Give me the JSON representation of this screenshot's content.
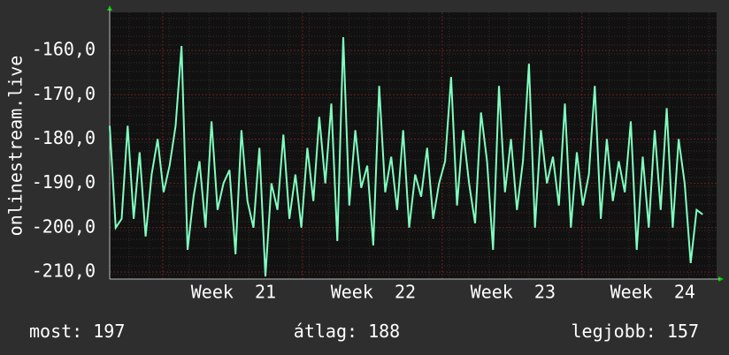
{
  "chart_data": {
    "type": "line",
    "y_label": "onlinestream.live",
    "x": [
      0,
      0.3,
      0.6,
      0.9,
      1.2,
      1.5,
      1.8,
      2.1,
      2.4,
      2.7,
      3,
      3.3,
      3.6,
      3.9,
      4.2,
      4.5,
      4.8,
      5.1,
      5.4,
      5.7,
      6,
      6.3,
      6.6,
      6.9,
      7.2,
      7.5,
      7.8,
      8.1,
      8.4,
      8.7,
      9,
      9.3,
      9.6,
      9.9,
      10.2,
      10.5,
      10.8,
      11.1,
      11.4,
      11.7,
      12,
      12.3,
      12.6,
      12.9,
      13.2,
      13.5,
      13.8,
      14.1,
      14.4,
      14.7,
      15,
      15.3,
      15.6,
      15.9,
      16.2,
      16.5,
      16.8,
      17.1,
      17.4,
      17.7,
      18,
      18.3,
      18.6,
      18.9,
      19.2,
      19.5,
      19.8,
      20.1,
      20.4,
      20.7,
      21,
      21.3,
      21.6,
      21.9,
      22.2,
      22.5,
      22.8,
      23.1,
      23.4,
      23.7,
      24,
      24.3,
      24.6,
      24.9,
      25.2,
      25.5,
      25.8,
      26.1,
      26.4,
      26.7,
      27,
      27.3,
      27.6,
      27.9,
      28.2,
      28.5,
      28.8,
      29.1,
      29.4,
      29.7
    ],
    "series": [
      {
        "name": "onlinestream.live",
        "color": "#80ffc0",
        "values": [
          -177,
          -200,
          -198,
          -177,
          -198,
          -183,
          -202,
          -188,
          -180,
          -192,
          -186,
          -177,
          -159,
          -205,
          -193,
          -185,
          -200,
          -176,
          -196,
          -190,
          -187,
          -206,
          -178,
          -194,
          -200,
          -182,
          -211,
          -190,
          -196,
          -179,
          -198,
          -188,
          -200,
          -182,
          -194,
          -175,
          -190,
          -172,
          -203,
          -157,
          -195,
          -178,
          -191,
          -186,
          -204,
          -168,
          -192,
          -184,
          -196,
          -178,
          -200,
          -188,
          -193,
          -182,
          -198,
          -190,
          -185,
          -166,
          -195,
          -178,
          -190,
          -199,
          -174,
          -185,
          -205,
          -168,
          -192,
          -180,
          -196,
          -185,
          -163,
          -200,
          -178,
          -190,
          -184,
          -195,
          -172,
          -200,
          -183,
          -195,
          -188,
          -168,
          -198,
          -180,
          -194,
          -185,
          -192,
          -176,
          -205,
          -184,
          -200,
          -178,
          -196,
          -173,
          -200,
          -180,
          -190,
          -208,
          -196,
          -197
        ]
      }
    ],
    "xlim": [
      0,
      30.4
    ],
    "xticks": [
      {
        "value": 6.2,
        "label": "Week  21"
      },
      {
        "value": 13.2,
        "label": "Week  22"
      },
      {
        "value": 20.2,
        "label": "Week  23"
      },
      {
        "value": 27.2,
        "label": "Week  24"
      }
    ],
    "ylim": [
      -211.6,
      -151.4
    ],
    "yticks": [
      {
        "value": -210,
        "label": "-210,0"
      },
      {
        "value": -200,
        "label": "-200,0"
      },
      {
        "value": -190,
        "label": "-190,0"
      },
      {
        "value": -180,
        "label": "-180,0"
      },
      {
        "value": -170,
        "label": "-170,0"
      },
      {
        "value": -160,
        "label": "-160,0"
      }
    ],
    "grid": true,
    "footer": [
      "most: 197",
      "átlag: 188",
      "legjobb: 157"
    ]
  }
}
